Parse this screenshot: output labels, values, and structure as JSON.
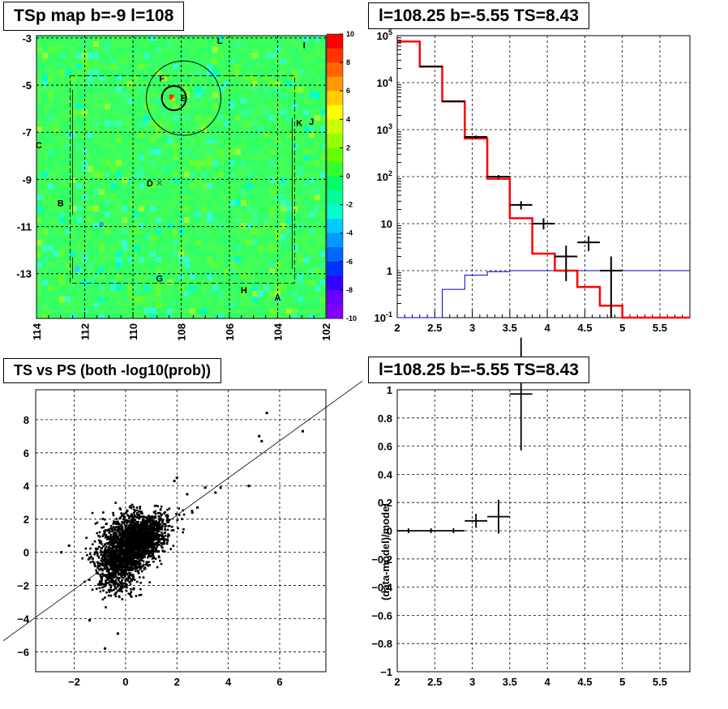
{
  "chart_data": [
    {
      "type": "heatmap",
      "title": "TSp map b=-9 l=108",
      "x_ticks": [
        "114",
        "112",
        "110",
        "108",
        "106",
        "104",
        "102"
      ],
      "y_ticks": [
        "-3",
        "-5",
        "-7",
        "-9",
        "-11",
        "-13"
      ],
      "xlim": [
        114,
        102
      ],
      "ylim": [
        -14.9,
        -2.9
      ],
      "colorbar": {
        "min": -10,
        "max": 10,
        "ticks": [
          "10",
          "8",
          "6",
          "4",
          "2",
          "0",
          "-2",
          "-4",
          "-6",
          "-8",
          "-10"
        ]
      },
      "labels": [
        {
          "text": "L",
          "l": 106.4,
          "b": -3.1
        },
        {
          "text": "I",
          "l": 102.9,
          "b": -3.3
        },
        {
          "text": "F",
          "l": 108.8,
          "b": -4.7
        },
        {
          "text": "E",
          "l": 107.9,
          "b": -5.55
        },
        {
          "text": "K",
          "l": 103.1,
          "b": -6.6
        },
        {
          "text": "J",
          "l": 102.6,
          "b": -6.55
        },
        {
          "text": "C",
          "l": 113.9,
          "b": -7.55
        },
        {
          "text": "D",
          "l": 109.3,
          "b": -9.15
        },
        {
          "text": "B",
          "l": 113.0,
          "b": -10.0
        },
        {
          "text": "G",
          "l": 108.9,
          "b": -13.2
        },
        {
          "text": "H",
          "l": 105.4,
          "b": -13.7
        },
        {
          "text": "A",
          "l": 104.0,
          "b": -14.0
        }
      ]
    },
    {
      "type": "line",
      "title": "l=108.25 b=-5.55 TS=8.43",
      "x_ticks": [
        "2",
        "2.5",
        "3",
        "3.5",
        "4",
        "4.5",
        "5",
        "5.5"
      ],
      "y_ticks": [
        "10^5",
        "10^4",
        "10^3",
        "10^2",
        "10",
        "1",
        "10^-1"
      ],
      "xlim": [
        2.0,
        5.9
      ],
      "ylim": [
        0.1,
        100000
      ],
      "log_y": true,
      "grid": true,
      "series": [
        {
          "style": "model-red",
          "edges": [
            2.0,
            2.3,
            2.6,
            2.9,
            3.2,
            3.5,
            3.8,
            4.1,
            4.4,
            4.7,
            5.0,
            5.9
          ],
          "values": [
            75000,
            22000,
            4000,
            650,
            90,
            13,
            2.3,
            1.0,
            0.45,
            0.18,
            0.1
          ]
        },
        {
          "style": "background-blue",
          "edges": [
            2.0,
            2.6,
            2.9,
            3.2,
            3.5,
            3.8,
            5.9
          ],
          "values": [
            0.1,
            0.4,
            0.8,
            0.95,
            1.0,
            1.0
          ]
        },
        {
          "style": "data-points",
          "x": [
            2.45,
            2.75,
            3.05,
            3.35,
            3.65,
            3.95,
            4.25,
            4.55,
            4.85
          ],
          "y": [
            22000,
            4000,
            700,
            100,
            25,
            10,
            2,
            4,
            1
          ],
          "ylo": [
            22000,
            4000,
            650,
            92,
            20,
            7.5,
            0.6,
            2.6,
            0.1
          ],
          "yhi": [
            22000,
            4000,
            750,
            108,
            30,
            13,
            3.4,
            5.4,
            2
          ]
        }
      ]
    },
    {
      "type": "scatter",
      "title": "TS vs PS (both -log10(prob))",
      "x_ticks": [
        "-2",
        "0",
        "2",
        "4",
        "6"
      ],
      "y_ticks": [
        "8",
        "6",
        "4",
        "2",
        "0",
        "-2",
        "-4",
        "-6"
      ],
      "xlim": [
        -3.5,
        7.8
      ],
      "ylim": [
        -7.2,
        9.8
      ],
      "grid": true,
      "fit_line": {
        "slope": 1.12,
        "intercept": 0.0
      },
      "outliers": [
        [
          5.5,
          8.4
        ],
        [
          5.2,
          7.0
        ],
        [
          5.3,
          6.7
        ],
        [
          6.9,
          7.3
        ],
        [
          4.8,
          4.0
        ],
        [
          3.7,
          3.9
        ],
        [
          3.5,
          3.6
        ],
        [
          3.1,
          3.9
        ],
        [
          2.0,
          4.5
        ],
        [
          1.9,
          4.3
        ],
        [
          2.4,
          3.5
        ],
        [
          2.8,
          2.7
        ],
        [
          2.6,
          2.4
        ],
        [
          -0.8,
          -5.8
        ],
        [
          -0.3,
          -4.9
        ],
        [
          -1.4,
          -4.1
        ],
        [
          -2.5,
          0.0
        ],
        [
          -2.2,
          0.4
        ]
      ]
    },
    {
      "type": "line",
      "title": "l=108.25 b=-5.55 TS=8.43",
      "ylabel": "(data-model)/model",
      "x_ticks": [
        "2",
        "2.5",
        "3",
        "3.5",
        "4",
        "4.5",
        "5",
        "5.5"
      ],
      "y_ticks": [
        "1",
        "0.8",
        "0.6",
        "0.4",
        "0.2",
        "0",
        "-0.2",
        "-0.4",
        "-0.6",
        "-0.8",
        "-1"
      ],
      "xlim": [
        2.0,
        5.9
      ],
      "ylim": [
        -1,
        1
      ],
      "grid": true,
      "points": [
        {
          "x": 2.15,
          "y": 0.0,
          "xerr": 0.15,
          "yerr": 0.0
        },
        {
          "x": 2.45,
          "y": 0.0,
          "xerr": 0.15,
          "yerr": 0.0
        },
        {
          "x": 2.75,
          "y": 0.0,
          "xerr": 0.15,
          "yerr": 0.0
        },
        {
          "x": 3.05,
          "y": 0.07,
          "xerr": 0.15,
          "yerr": 0.05
        },
        {
          "x": 3.35,
          "y": 0.1,
          "xerr": 0.15,
          "yerr": 0.12
        },
        {
          "x": 3.65,
          "y": 0.97,
          "xerr": 0.15,
          "yerr": 0.4
        }
      ]
    }
  ]
}
